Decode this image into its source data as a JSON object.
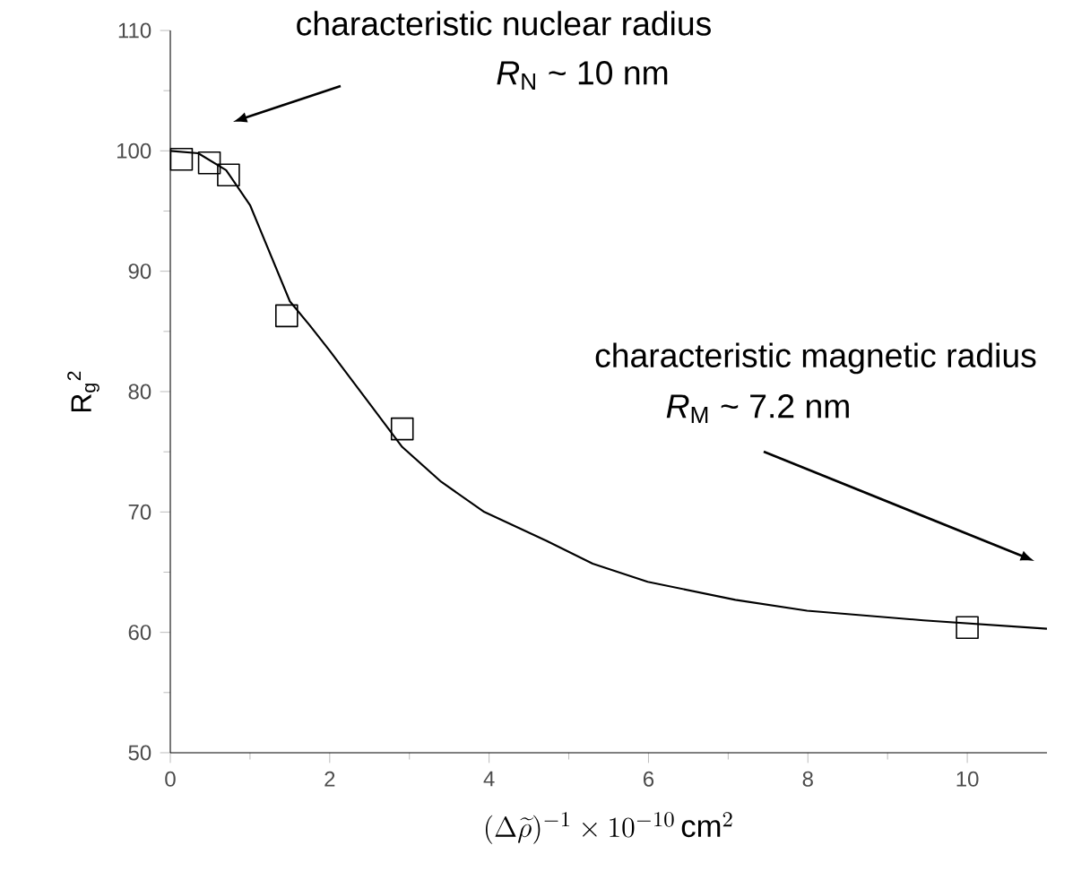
{
  "chart_data": {
    "type": "scatter",
    "xlabel": "(\\Delta\\widetilde{\\rho})^{-1}\\times 10^{-10}\\,\\mathrm{cm}^{2}",
    "ylabel": "R$_{g}$$^{2}$",
    "xlim": [
      0,
      11
    ],
    "xticks": [
      0,
      2,
      4,
      6,
      8,
      10
    ],
    "ylim": [
      50,
      110
    ],
    "yticks": [
      50,
      60,
      70,
      80,
      90,
      100,
      110
    ],
    "annotations": [
      "characteristic nuclear radius",
      "*R*$_{N}$ ~ 10 nm",
      "characteristic magnetic radius",
      "*R*$_{M}$ ~ 7.2 nm"
    ],
    "series": [
      {
        "type": "line",
        "marker": "none",
        "color": "#000000",
        "x": [
          0,
          0.35,
          0.7,
          1.0,
          1.25,
          1.5,
          1.75,
          2.0,
          2.5,
          2.91,
          3.4,
          3.94,
          4.72,
          5.3,
          5.99,
          7.09,
          7.99,
          9.45,
          11
        ],
        "values": [
          100,
          99.8,
          98.4,
          95.5,
          91.5,
          87.5,
          85.5,
          83.4,
          79.0,
          75.4,
          72.5,
          70.0,
          67.6,
          65.7,
          64.2,
          62.7,
          61.8,
          61.0,
          60.3
        ]
      },
      {
        "marker": "square",
        "color": "#000000",
        "x": [
          0.14,
          0.49,
          0.73,
          1.46,
          2.91,
          10
        ],
        "values": [
          99.3,
          99.0,
          98.0,
          86.3,
          76.9,
          60.4
        ]
      }
    ]
  }
}
